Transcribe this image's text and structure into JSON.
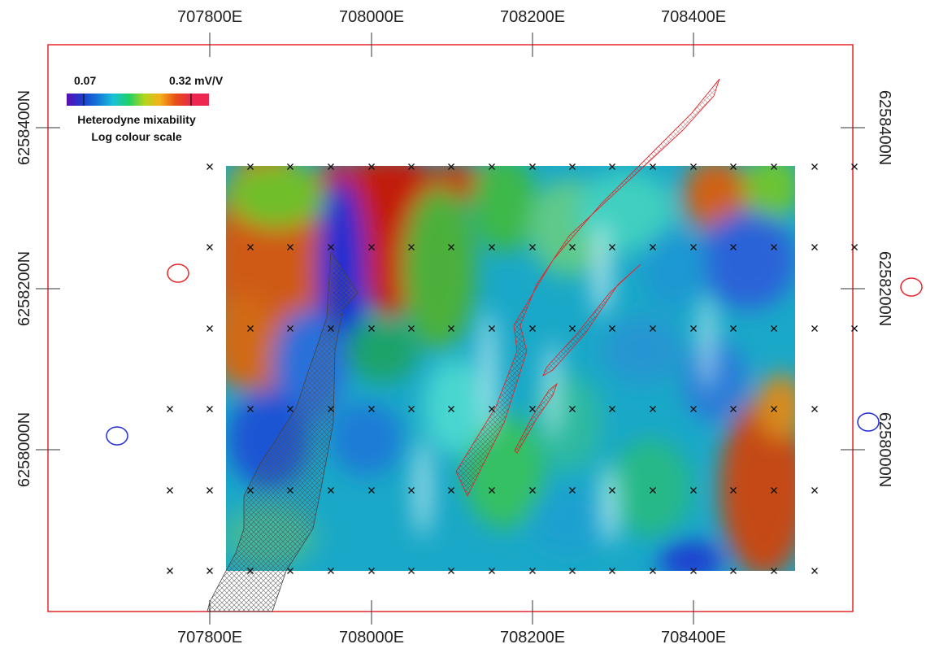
{
  "map": {
    "easting_labels": [
      "707800E",
      "708000E",
      "708200E",
      "708400E"
    ],
    "northing_labels": [
      "6258400N",
      "6258200N",
      "6258000N"
    ],
    "colors": {
      "frame": "#e8262b",
      "red_features": "#e8262b",
      "blue_features": "#1f2bd6",
      "stations": "#111111"
    }
  },
  "legend": {
    "min_label": "0.07",
    "max_label": "0.32 mV/V",
    "title": "Heterodyne mixability",
    "subtitle": "Log colour scale",
    "ramp_colors": [
      "#5a0fb3",
      "#1b3ccf",
      "#1478d8",
      "#19c1d8",
      "#1fd066",
      "#b2d51c",
      "#f6b21a",
      "#e84f16",
      "#e8264d"
    ],
    "end_swatch_color": "#ee2750"
  }
}
